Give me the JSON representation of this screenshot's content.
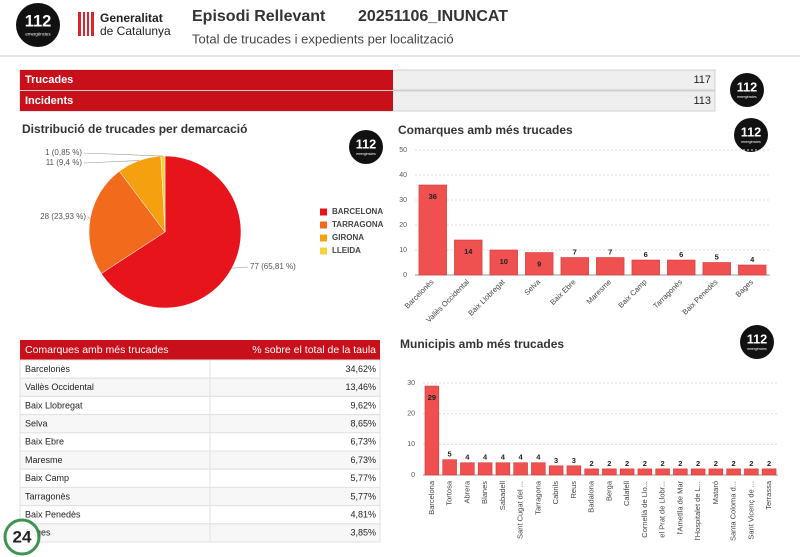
{
  "logo": {
    "number": "112",
    "caption": "emergències"
  },
  "header": {
    "org_line1": "Generalitat",
    "org_line2": "de Catalunya",
    "title": "Episodi Rellevant",
    "code": "20251106_INUNCAT",
    "subtitle": "Total de trucades i expedients per localització"
  },
  "summary": {
    "rows": [
      {
        "label": "Trucades",
        "value": 117
      },
      {
        "label": "Incidents",
        "value": 113
      }
    ]
  },
  "table": {
    "header": [
      "Comarques amb més trucades",
      "% sobre el total de la taula"
    ],
    "rows": [
      [
        "Barcelonès",
        "34,62%"
      ],
      [
        "Vallès Occidental",
        "13,46%"
      ],
      [
        "Baix Llobregat",
        "9,62%"
      ],
      [
        "Selva",
        "8,65%"
      ],
      [
        "Baix Ebre",
        "6,73%"
      ],
      [
        "Maresme",
        "6,73%"
      ],
      [
        "Baix Camp",
        "5,77%"
      ],
      [
        "Tarragonès",
        "5,77%"
      ],
      [
        "Baix Penedès",
        "4,81%"
      ],
      [
        "Bages",
        "3,85%"
      ]
    ]
  },
  "watermark": "24",
  "chart_data": [
    {
      "type": "pie",
      "title": "Distribució de trucades per demarcació",
      "categories": [
        "BARCELONA",
        "TARRAGONA",
        "GIRONA",
        "LLEIDA"
      ],
      "values": [
        77,
        28,
        11,
        1
      ],
      "value_labels": [
        "77 (65,81 %)",
        "28 (23,93 %)",
        "11 (9,4 %)",
        "1 (0,85 %)"
      ],
      "colors": [
        "#e8141b",
        "#f26b1d",
        "#f5a10f",
        "#f4d23c"
      ]
    },
    {
      "type": "bar",
      "title": "Comarques amb més trucades",
      "categories": [
        "Barcelonès",
        "Vallès Occidental",
        "Baix Llobregat",
        "Selva",
        "Baix Ebre",
        "Maresme",
        "Baix Camp",
        "Tarragonès",
        "Baix Penedès",
        "Bages"
      ],
      "values": [
        36,
        14,
        10,
        9,
        7,
        7,
        6,
        6,
        5,
        4
      ],
      "color": "#ef5050",
      "ylim": [
        0,
        50
      ],
      "yticks": [
        0,
        10,
        20,
        30,
        40,
        50
      ],
      "grid": true
    },
    {
      "type": "bar",
      "title": "Municipis amb més trucades",
      "categories": [
        "Barcelona",
        "Tortosa",
        "Abrera",
        "Blanes",
        "Sabadell",
        "Sant Cugat del ...",
        "Tarragona",
        "Cabrils",
        "Reus",
        "Badalona",
        "Berga",
        "Calafell",
        "Cornellà de Llo...",
        "el Prat de Llobr...",
        "l'Ametlla de Mar",
        "l'Hospitalet de L...",
        "Mataró",
        "Santa Coloma d...",
        "Sant Vicenç de ...",
        "Terrassa"
      ],
      "values": [
        29,
        5,
        4,
        4,
        4,
        4,
        4,
        3,
        3,
        2,
        2,
        2,
        2,
        2,
        2,
        2,
        2,
        2,
        2,
        2
      ],
      "color": "#ef5050",
      "ylim": [
        0,
        30
      ],
      "yticks": [
        0,
        10,
        20,
        30
      ],
      "grid": true
    }
  ]
}
